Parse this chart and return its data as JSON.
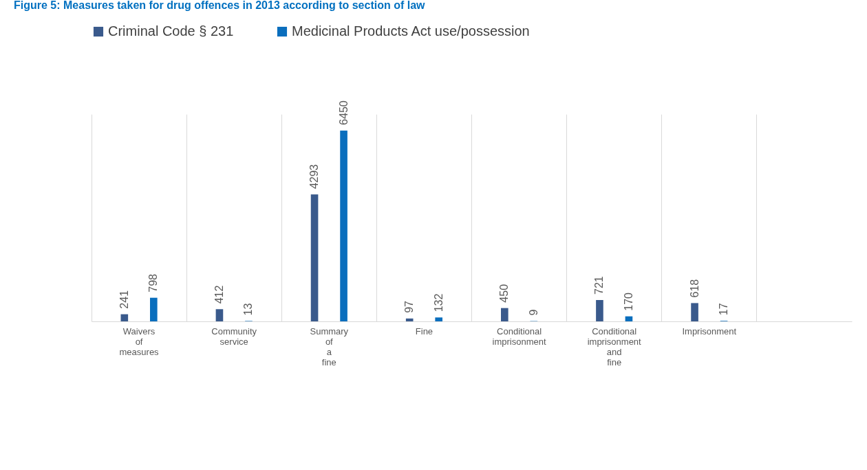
{
  "chart_data": {
    "type": "bar",
    "title": "Figure 5: Measures taken for drug offences in 2013 according to section of law",
    "categories": [
      "Waivers of measures",
      "Community service",
      "Summary of a fine",
      "Fine",
      "Conditional imprisonment",
      "Conditional imprisonment and fine",
      "Imprisonment",
      null
    ],
    "series": [
      {
        "name": "Criminal Code § 231",
        "color": "#3a5a8c",
        "values": [
          241,
          412,
          4293,
          97,
          450,
          721,
          618,
          null
        ]
      },
      {
        "name": "Medicinal Products Act use/possession",
        "color": "#0a6ebd",
        "values": [
          798,
          13,
          6450,
          132,
          9,
          170,
          17,
          null
        ]
      }
    ],
    "ylim": [
      0,
      7000
    ],
    "data_labels": true,
    "grid": "x",
    "legend": "top"
  }
}
